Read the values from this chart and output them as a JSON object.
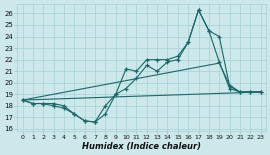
{
  "bg_color": "#cce8ea",
  "grid_color": "#a8d0d4",
  "line_color": "#1a6868",
  "xlabel": "Humidex (Indice chaleur)",
  "xlim": [
    -0.5,
    23.5
  ],
  "ylim": [
    15.8,
    26.8
  ],
  "xticks": [
    0,
    1,
    2,
    3,
    4,
    5,
    6,
    7,
    8,
    9,
    10,
    11,
    12,
    13,
    14,
    15,
    16,
    17,
    18,
    19,
    20,
    21,
    22,
    23
  ],
  "yticks": [
    16,
    17,
    18,
    19,
    20,
    21,
    22,
    23,
    24,
    25,
    26
  ],
  "line1_x": [
    0,
    1,
    2,
    3,
    4,
    5,
    6,
    7,
    8,
    9,
    10,
    11,
    12,
    13,
    14,
    15,
    16,
    17,
    18,
    19,
    20,
    21,
    22,
    23
  ],
  "line1_y": [
    18.5,
    18.2,
    18.2,
    18.0,
    17.8,
    17.3,
    16.7,
    16.6,
    18.0,
    19.0,
    21.2,
    21.0,
    22.0,
    22.0,
    22.0,
    22.3,
    23.5,
    26.3,
    24.5,
    24.0,
    19.7,
    19.2,
    19.2,
    19.2
  ],
  "line2_x": [
    0,
    1,
    2,
    3,
    4,
    5,
    6,
    7,
    8,
    9,
    10,
    11,
    12,
    13,
    14,
    15,
    16,
    17,
    18,
    19,
    20,
    21,
    22,
    23
  ],
  "line2_y": [
    18.5,
    18.2,
    18.2,
    18.2,
    18.0,
    17.3,
    16.7,
    16.6,
    17.3,
    19.0,
    19.5,
    20.4,
    21.5,
    21.0,
    21.8,
    22.0,
    23.5,
    26.3,
    24.5,
    21.8,
    19.5,
    19.2,
    19.2,
    19.2
  ],
  "line3_x": [
    0,
    23
  ],
  "line3_y": [
    18.5,
    19.2
  ],
  "line4_x": [
    0,
    19,
    20,
    21,
    22,
    23
  ],
  "line4_y": [
    18.5,
    21.7,
    19.8,
    19.2,
    19.2,
    19.2
  ]
}
